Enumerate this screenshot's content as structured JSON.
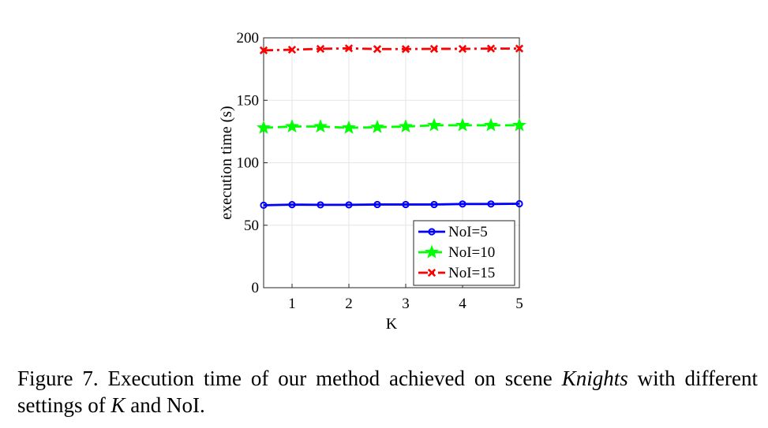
{
  "chart_data": {
    "type": "line",
    "xlabel": "K",
    "ylabel": "execution time (s)",
    "xlim": [
      0.5,
      5
    ],
    "ylim": [
      0,
      200
    ],
    "xticks": [
      1,
      2,
      3,
      4,
      5
    ],
    "yticks": [
      0,
      50,
      100,
      150,
      200
    ],
    "grid": true,
    "legend_position": "bottom-right",
    "x": [
      0.5,
      1,
      1.5,
      2,
      2.5,
      3,
      3.5,
      4,
      4.5,
      5
    ],
    "series": [
      {
        "name": "NoI=5",
        "color": "#0000ff",
        "marker": "circle",
        "dash": "solid",
        "values": [
          66,
          66.5,
          66.3,
          66.3,
          66.6,
          66.6,
          66.6,
          67,
          67,
          67.2
        ]
      },
      {
        "name": "NoI=10",
        "color": "#00ff00",
        "marker": "star",
        "dash": "dashed",
        "values": [
          128,
          129,
          129,
          128,
          128.5,
          129,
          130,
          130,
          130,
          130
        ]
      },
      {
        "name": "NoI=15",
        "color": "#ff0000",
        "marker": "x",
        "dash": "dashdot",
        "values": [
          190,
          190.5,
          191.2,
          191.6,
          191,
          191,
          191.2,
          191.2,
          191.4,
          191.4
        ]
      }
    ]
  },
  "caption": {
    "prefix": "Figure 7.   Execution time of our method achieved on scene ",
    "scene": "Knights",
    "middle": " with different settings of ",
    "k": "K",
    "suffix": " and NoI."
  }
}
